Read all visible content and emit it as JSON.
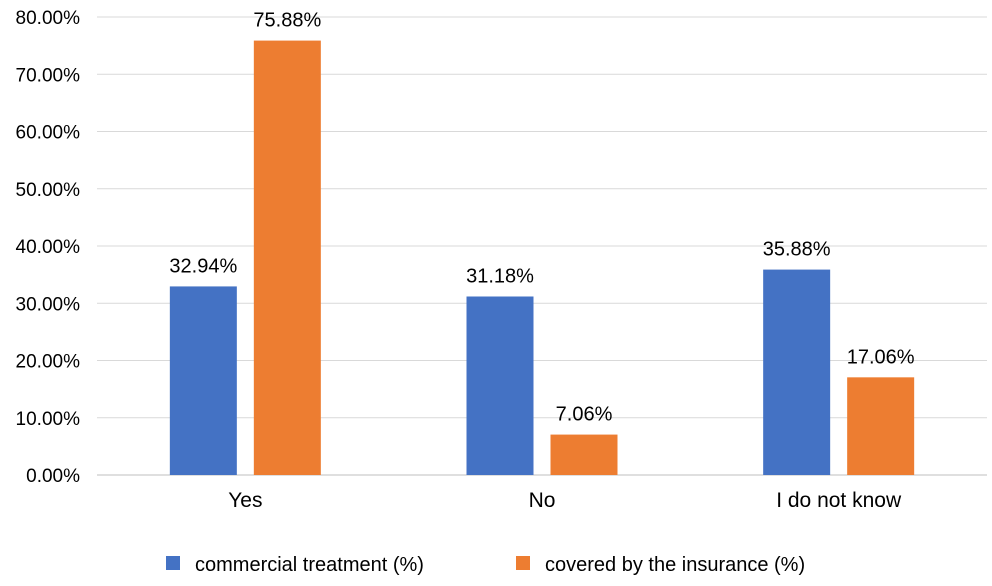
{
  "chart_data": {
    "type": "bar",
    "title": "",
    "xlabel": "",
    "ylabel": "",
    "categories": [
      "Yes",
      "No",
      "I do not know"
    ],
    "series": [
      {
        "name": "commercial treatment (%)",
        "color": "#4472C4",
        "values": [
          32.94,
          31.18,
          35.88
        ],
        "labels": [
          "32.94%",
          "31.18%",
          "35.88%"
        ]
      },
      {
        "name": "covered by the insurance (%)",
        "color": "#ED7D31",
        "values": [
          75.88,
          7.06,
          17.06
        ],
        "labels": [
          "75.88%",
          "7.06%",
          "17.06%"
        ]
      }
    ],
    "ylim": [
      0,
      80
    ],
    "yticks": [
      "0.00%",
      "10.00%",
      "20.00%",
      "30.00%",
      "40.00%",
      "50.00%",
      "60.00%",
      "70.00%",
      "80.00%"
    ],
    "grid": true,
    "legend_position": "bottom"
  }
}
